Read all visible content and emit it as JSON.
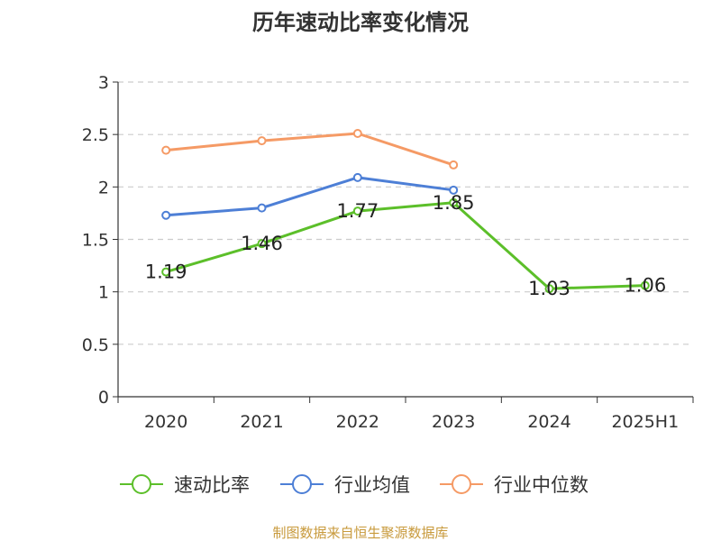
{
  "chart_data": {
    "type": "line",
    "title": "历年速动比率变化情况",
    "categories": [
      "2020",
      "2021",
      "2022",
      "2023",
      "2024",
      "2025H1"
    ],
    "ylim": [
      0,
      3
    ],
    "yticks": [
      "0",
      "0.5",
      "1",
      "1.5",
      "2",
      "2.5",
      "3"
    ],
    "grid": true,
    "legend_position": "bottom",
    "series": [
      {
        "name": "速动比率",
        "color": "#5cbf2a",
        "values": [
          1.19,
          1.46,
          1.77,
          1.85,
          1.03,
          1.06
        ],
        "data_labels": [
          "1.19",
          "1.46",
          "1.77",
          "1.85",
          "1.03",
          "1.06"
        ]
      },
      {
        "name": "行业均值",
        "color": "#4d7fd6",
        "values": [
          1.73,
          1.8,
          2.09,
          1.97,
          null,
          null
        ]
      },
      {
        "name": "行业中位数",
        "color": "#f59a65",
        "values": [
          2.35,
          2.44,
          2.51,
          2.21,
          null,
          null
        ]
      }
    ],
    "source": "制图数据来自恒生聚源数据库"
  }
}
